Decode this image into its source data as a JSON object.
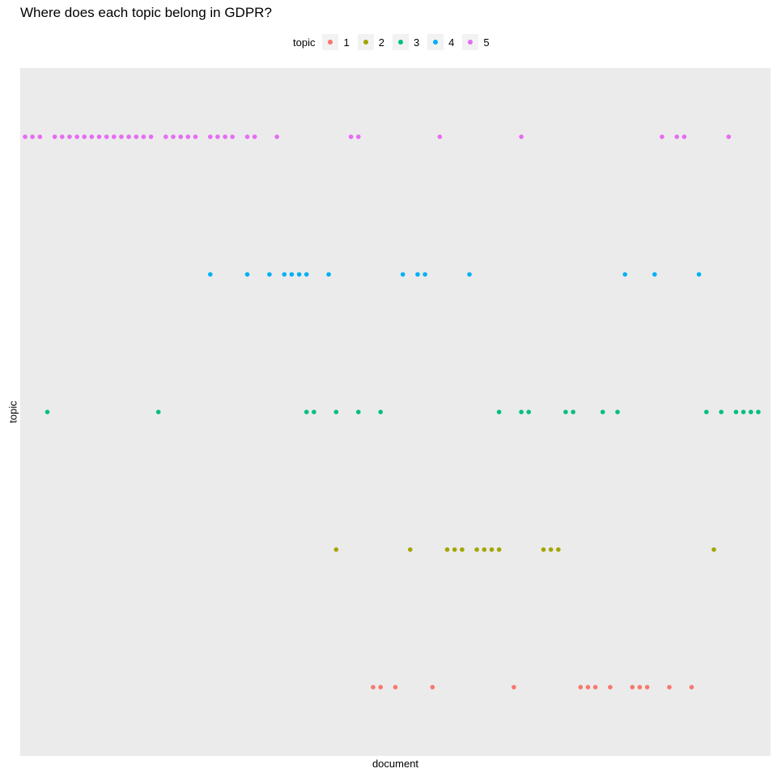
{
  "chart_data": {
    "type": "scatter",
    "title": "Where does each topic belong in GDPR?",
    "xlabel": "document",
    "ylabel": "topic",
    "legend": {
      "title": "topic",
      "placement": "top"
    },
    "x_tick_labels": "none",
    "y_tick_labels": "none",
    "ylim": [
      0.5,
      5.5
    ],
    "xlim": [
      0,
      100
    ],
    "grid": false,
    "panel_background": "#ebebeb",
    "series": [
      {
        "name": "1",
        "color": "#f8766d",
        "y": 1,
        "x": [
          47,
          48,
          50,
          55,
          66,
          75,
          76,
          77,
          79,
          82,
          83,
          84,
          87,
          90
        ]
      },
      {
        "name": "2",
        "color": "#a3a500",
        "y": 2,
        "x": [
          42,
          52,
          57,
          58,
          59,
          61,
          62,
          63,
          64,
          70,
          71,
          72,
          93
        ]
      },
      {
        "name": "3",
        "color": "#00bf7d",
        "y": 3,
        "x": [
          3,
          18,
          38,
          39,
          42,
          45,
          48,
          64,
          67,
          68,
          73,
          74,
          78,
          80,
          92,
          94,
          96,
          97,
          98,
          99
        ]
      },
      {
        "name": "4",
        "color": "#00b0f6",
        "y": 4,
        "x": [
          25,
          30,
          33,
          35,
          36,
          37,
          38,
          41,
          51,
          53,
          54,
          60,
          81,
          85,
          91
        ]
      },
      {
        "name": "5",
        "color": "#e76bf3",
        "y": 5,
        "x": [
          0,
          1,
          2,
          4,
          5,
          6,
          7,
          8,
          9,
          10,
          11,
          12,
          13,
          14,
          15,
          16,
          17,
          19,
          20,
          21,
          22,
          23,
          25,
          26,
          27,
          28,
          30,
          31,
          34,
          44,
          45,
          56,
          67,
          86,
          88,
          89,
          95
        ]
      }
    ]
  }
}
